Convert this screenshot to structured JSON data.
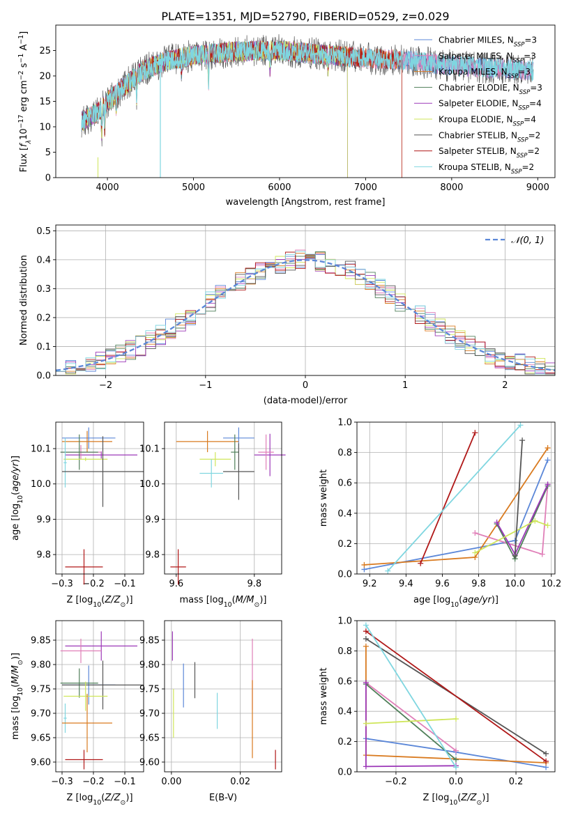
{
  "figure": {
    "title": "PLATE=1351, MJD=52790, FIBERID=0529, z=0.029"
  },
  "colors": {
    "Chabrier MILES": "#5b87d8",
    "Salpeter MILES": "#e07fb8",
    "Kroupa MILES": "#d97a1f",
    "Chabrier ELODIE": "#4f7f59",
    "Salpeter ELODIE": "#9c38b8",
    "Kroupa ELODIE": "#cfe65a",
    "Chabrier STELIB": "#555555",
    "Salpeter STELIB": "#b01818",
    "Kroupa STELIB": "#7fd6e0",
    "gaussian": "#5b87d8"
  },
  "chart_data": [
    {
      "id": "spectrum",
      "type": "line",
      "xlabel": "wavelength [Angstrom, rest frame]",
      "ylabel": "Flux [f_λ10^-17 erg cm^-2 s^-1 A^-1]",
      "xlim": [
        3400,
        9200
      ],
      "ylim": [
        0,
        30
      ],
      "xticks": [
        "4000",
        "5000",
        "6000",
        "7000",
        "8000",
        "9000"
      ],
      "yticks": [
        "0",
        "5",
        "10",
        "15",
        "20",
        "25"
      ],
      "legend_position": "upper right",
      "x_range": [
        3700,
        8950
      ],
      "continuum": [
        [
          3700,
          11
        ],
        [
          3900,
          13
        ],
        [
          4000,
          15
        ],
        [
          4200,
          18
        ],
        [
          4400,
          21
        ],
        [
          4700,
          23
        ],
        [
          5000,
          24
        ],
        [
          5500,
          24.8
        ],
        [
          6000,
          25
        ],
        [
          6500,
          24.2
        ],
        [
          7000,
          23.5
        ],
        [
          7500,
          23
        ],
        [
          8000,
          22
        ],
        [
          8500,
          21.5
        ],
        [
          8950,
          21
        ]
      ],
      "series": [
        {
          "name": "Chabrier MILES, N_SSP=3",
          "label_main": "Chabrier MILES, N",
          "label_sub": "SSP",
          "label_tail": "=3",
          "color_key": "Chabrier MILES",
          "end": 8950
        },
        {
          "name": "Salpeter MILES, N_SSP=3",
          "label_main": "Salpeter MILES, N",
          "label_sub": "SSP",
          "label_tail": "=3",
          "color_key": "Salpeter MILES",
          "end": 8950
        },
        {
          "name": "Kroupa MILES, N_SSP=3",
          "label_main": "Kroupa MILES, N",
          "label_sub": "SSP",
          "label_tail": "=3",
          "color_key": "Kroupa MILES",
          "end": 7420
        },
        {
          "name": "Chabrier ELODIE, N_SSP=3",
          "label_main": "Chabrier ELODIE, N",
          "label_sub": "SSP",
          "label_tail": "=3",
          "color_key": "Chabrier ELODIE",
          "end": 6790
        },
        {
          "name": "Salpeter ELODIE, N_SSP=4",
          "label_main": "Salpeter ELODIE, N",
          "label_sub": "SSP",
          "label_tail": "=4",
          "color_key": "Salpeter ELODIE",
          "end": 6790
        },
        {
          "name": "Kroupa ELODIE, N_SSP=4",
          "label_main": "Kroupa ELODIE, N",
          "label_sub": "SSP",
          "label_tail": "=4",
          "color_key": "Kroupa ELODIE",
          "end": 6790
        },
        {
          "name": "Chabrier STELIB, N_SSP=2",
          "label_main": "Chabrier STELIB, N",
          "label_sub": "SSP",
          "label_tail": "=2",
          "color_key": "Chabrier STELIB",
          "end": 8950
        },
        {
          "name": "Salpeter STELIB, N_SSP=2",
          "label_main": "Salpeter STELIB, N",
          "label_sub": "SSP",
          "label_tail": "=2",
          "color_key": "Salpeter STELIB",
          "end": 7420
        },
        {
          "name": "Kroupa STELIB, N_SSP=2",
          "label_main": "Kroupa STELIB, N",
          "label_sub": "SSP",
          "label_tail": "=2",
          "color_key": "Kroupa STELIB",
          "end": 8950
        }
      ]
    },
    {
      "id": "residuals",
      "type": "histogram",
      "xlabel": "(data-model)/error",
      "ylabel": "Normed distribution",
      "xlim": [
        -2.5,
        2.5
      ],
      "ylim": [
        0,
        0.52
      ],
      "xticks": [
        "-2",
        "-1",
        "0",
        "1",
        "2"
      ],
      "yticks": [
        "0.0",
        "0.1",
        "0.2",
        "0.3",
        "0.4",
        "0.5"
      ],
      "grid": true,
      "legend_position": "upper right",
      "legend_label": "𝒩(0, 1)",
      "bin_width": 0.1,
      "bin_start": -2.5,
      "gaussian": {
        "mean": 0,
        "sigma": 1
      },
      "series_color_keys": [
        "Chabrier MILES",
        "Salpeter MILES",
        "Kroupa MILES",
        "Chabrier ELODIE",
        "Salpeter ELODIE",
        "Kroupa ELODIE",
        "Chabrier STELIB",
        "Salpeter STELIB",
        "Kroupa STELIB"
      ]
    },
    {
      "id": "age_vs_z",
      "type": "errorbar",
      "xlabel": "Z [log10(Z/Z⊙)]",
      "ylabel": "age [log10(age/yr)]",
      "xlim": [
        -0.32,
        -0.04
      ],
      "ylim": [
        9.745,
        10.175
      ],
      "xticks": [
        "-0.3",
        "-0.2",
        "-0.1"
      ],
      "xtick_values": [
        -0.3,
        -0.2,
        -0.1
      ],
      "yticks": [
        "9.8",
        "9.9",
        "10.0",
        "10.1"
      ],
      "ytick_values": [
        9.8,
        9.9,
        10.0,
        10.1
      ],
      "points": [
        {
          "color_key": "Chabrier MILES",
          "x": -0.215,
          "xerr": 0.085,
          "y": 10.13,
          "yerr": 0.03
        },
        {
          "color_key": "Kroupa MILES",
          "x": -0.22,
          "xerr": 0.08,
          "y": 10.12,
          "yerr": 0.03
        },
        {
          "color_key": "Salpeter ELODIE",
          "x": -0.175,
          "xerr": 0.115,
          "y": 10.082,
          "yerr": 0.01
        },
        {
          "color_key": "Salpeter MILES",
          "x": -0.24,
          "xerr": 0.065,
          "y": 10.09,
          "yerr": 0.02
        },
        {
          "color_key": "Chabrier ELODIE",
          "x": -0.245,
          "xerr": 0.06,
          "y": 10.09,
          "yerr": 0.05
        },
        {
          "color_key": "Kroupa ELODIE",
          "x": -0.225,
          "xerr": 0.07,
          "y": 10.07,
          "yerr": 0.005
        },
        {
          "color_key": "Kroupa STELIB",
          "x": -0.29,
          "xerr": 0.005,
          "y": 10.06,
          "yerr": 0.07
        },
        {
          "color_key": "Chabrier STELIB",
          "x": -0.17,
          "xerr": 0.13,
          "y": 10.035,
          "yerr": 0.1
        },
        {
          "color_key": "Salpeter STELIB",
          "x": -0.23,
          "xerr": 0.06,
          "y": 9.765,
          "yerr": 0.05
        }
      ]
    },
    {
      "id": "age_vs_mass",
      "type": "errorbar",
      "xlabel": "mass [log10(M/M⊙)]",
      "ylabel": "",
      "xlim": [
        9.57,
        9.87
      ],
      "ylim": [
        9.745,
        10.175
      ],
      "xticks": [
        "9.6",
        "9.8"
      ],
      "xtick_values": [
        9.6,
        9.8
      ],
      "yticks": [
        "9.8",
        "9.9",
        "10.0",
        "10.1"
      ],
      "ytick_values": [
        9.8,
        9.9,
        10.0,
        10.1
      ],
      "points": [
        {
          "color_key": "Chabrier MILES",
          "x": 9.76,
          "xerr": 0.04,
          "y": 10.13,
          "yerr": 0.03
        },
        {
          "color_key": "Kroupa MILES",
          "x": 9.68,
          "xerr": 0.08,
          "y": 10.12,
          "yerr": 0.03
        },
        {
          "color_key": "Salpeter ELODIE",
          "x": 9.84,
          "xerr": 0.04,
          "y": 10.082,
          "yerr": 0.06
        },
        {
          "color_key": "Salpeter MILES",
          "x": 9.83,
          "xerr": 0.02,
          "y": 10.09,
          "yerr": 0.05
        },
        {
          "color_key": "Chabrier ELODIE",
          "x": 9.75,
          "xerr": 0.01,
          "y": 10.09,
          "yerr": 0.05
        },
        {
          "color_key": "Kroupa ELODIE",
          "x": 9.7,
          "xerr": 0.04,
          "y": 10.07,
          "yerr": 0.02
        },
        {
          "color_key": "Kroupa STELIB",
          "x": 9.69,
          "xerr": 0.03,
          "y": 10.03,
          "yerr": 0.04
        },
        {
          "color_key": "Chabrier STELIB",
          "x": 9.76,
          "xerr": 0.04,
          "y": 10.035,
          "yerr": 0.08
        },
        {
          "color_key": "Salpeter STELIB",
          "x": 9.605,
          "xerr": 0.02,
          "y": 9.765,
          "yerr": 0.05
        }
      ]
    },
    {
      "id": "weight_vs_age",
      "type": "line",
      "xlabel": "age [log10(age/yr)]",
      "ylabel": "mass weight",
      "xlim": [
        9.13,
        10.22
      ],
      "ylim": [
        0,
        1.0
      ],
      "xticks": [
        "9.2",
        "9.4",
        "9.6",
        "9.8",
        "10.0",
        "10.2"
      ],
      "xtick_values": [
        9.2,
        9.4,
        9.6,
        9.8,
        10.0,
        10.2
      ],
      "yticks": [
        "0.0",
        "0.2",
        "0.4",
        "0.6",
        "0.8",
        "1.0"
      ],
      "ytick_values": [
        0,
        0.2,
        0.4,
        0.6,
        0.8,
        1.0
      ],
      "grid": true,
      "series": [
        {
          "color_key": "Chabrier MILES",
          "x": [
            9.17,
            10.0,
            10.18
          ],
          "y": [
            0.03,
            0.22,
            0.75
          ]
        },
        {
          "color_key": "Kroupa MILES",
          "x": [
            9.17,
            9.78,
            10.18
          ],
          "y": [
            0.06,
            0.11,
            0.83
          ]
        },
        {
          "color_key": "Salpeter MILES",
          "x": [
            9.78,
            10.15,
            10.18
          ],
          "y": [
            0.27,
            0.13,
            0.59
          ]
        },
        {
          "color_key": "Chabrier ELODIE",
          "x": [
            9.9,
            10.0,
            10.18
          ],
          "y": [
            0.33,
            0.1,
            0.58
          ]
        },
        {
          "color_key": "Salpeter ELODIE",
          "x": [
            9.9,
            10.0,
            10.18
          ],
          "y": [
            0.34,
            0.13,
            0.59
          ]
        },
        {
          "color_key": "Kroupa ELODIE",
          "x": [
            9.78,
            10.11,
            10.18
          ],
          "y": [
            0.14,
            0.35,
            0.32
          ]
        },
        {
          "color_key": "Chabrier STELIB",
          "x": [
            10.0,
            10.04
          ],
          "y": [
            0.12,
            0.88
          ]
        },
        {
          "color_key": "Salpeter STELIB",
          "x": [
            9.48,
            9.78
          ],
          "y": [
            0.07,
            0.93
          ]
        },
        {
          "color_key": "Kroupa STELIB",
          "x": [
            9.3,
            10.03
          ],
          "y": [
            0.02,
            0.98
          ]
        }
      ]
    },
    {
      "id": "mass_vs_z",
      "type": "errorbar",
      "xlabel": "Z [log10(Z/Z⊙)]",
      "ylabel": "mass [log10(M/M⊙)]",
      "xlim": [
        -0.32,
        -0.04
      ],
      "ylim": [
        9.58,
        9.89
      ],
      "xticks": [
        "-0.3",
        "-0.2",
        "-0.1"
      ],
      "xtick_values": [
        -0.3,
        -0.2,
        -0.1
      ],
      "yticks": [
        "9.60",
        "9.65",
        "9.70",
        "9.75",
        "9.80",
        "9.85"
      ],
      "ytick_values": [
        9.6,
        9.65,
        9.7,
        9.75,
        9.8,
        9.85
      ],
      "points": [
        {
          "color_key": "Salpeter ELODIE",
          "x": -0.175,
          "xerr": 0.115,
          "y": 9.838,
          "yerr": 0.03
        },
        {
          "color_key": "Salpeter MILES",
          "x": -0.24,
          "xerr": 0.065,
          "y": 9.828,
          "yerr": 0.025
        },
        {
          "color_key": "Chabrier MILES",
          "x": -0.215,
          "xerr": 0.085,
          "y": 9.758,
          "yerr": 0.04
        },
        {
          "color_key": "Chabrier ELODIE",
          "x": -0.245,
          "xerr": 0.06,
          "y": 9.762,
          "yerr": 0.03
        },
        {
          "color_key": "Chabrier STELIB",
          "x": -0.17,
          "xerr": 0.13,
          "y": 9.758,
          "yerr": 0.05
        },
        {
          "color_key": "Kroupa ELODIE",
          "x": -0.225,
          "xerr": 0.07,
          "y": 9.735,
          "yerr": 0.03
        },
        {
          "color_key": "Kroupa STELIB",
          "x": -0.29,
          "xerr": 0.005,
          "y": 9.69,
          "yerr": 0.03
        },
        {
          "color_key": "Kroupa MILES",
          "x": -0.22,
          "xerr": 0.08,
          "y": 9.68,
          "yerr": 0.06
        },
        {
          "color_key": "Salpeter STELIB",
          "x": -0.23,
          "xerr": 0.06,
          "y": 9.605,
          "yerr": 0.02
        }
      ]
    },
    {
      "id": "mass_vs_ebv",
      "type": "errorbar",
      "xlabel": "E(B-V)",
      "ylabel": "",
      "xlim": [
        -0.002,
        0.032
      ],
      "ylim": [
        9.58,
        9.89
      ],
      "xticks": [
        "0.00",
        "0.02"
      ],
      "xtick_values": [
        0.0,
        0.02
      ],
      "yticks": [
        "9.60",
        "9.65",
        "9.70",
        "9.75",
        "9.80",
        "9.85"
      ],
      "ytick_values": [
        9.6,
        9.65,
        9.7,
        9.75,
        9.8,
        9.85
      ],
      "points": [
        {
          "color_key": "Salpeter ELODIE",
          "x": 0.0003,
          "xerr": 0.0,
          "y": 9.838,
          "yerr": 0.03
        },
        {
          "color_key": "Kroupa ELODIE",
          "x": 0.0006,
          "xerr": 0.0,
          "y": 9.7,
          "yerr": 0.05
        },
        {
          "color_key": "Chabrier MILES",
          "x": 0.0035,
          "xerr": 0.0,
          "y": 9.757,
          "yerr": 0.045
        },
        {
          "color_key": "Chabrier STELIB",
          "x": 0.0068,
          "xerr": 0.0,
          "y": 9.768,
          "yerr": 0.037
        },
        {
          "color_key": "Kroupa STELIB",
          "x": 0.0133,
          "xerr": 0.0,
          "y": 9.705,
          "yerr": 0.037
        },
        {
          "color_key": "Salpeter MILES",
          "x": 0.0235,
          "xerr": 0.0,
          "y": 9.78,
          "yerr": 0.073
        },
        {
          "color_key": "Kroupa MILES",
          "x": 0.0235,
          "xerr": 0.0,
          "y": 9.688,
          "yerr": 0.08
        },
        {
          "color_key": "Salpeter STELIB",
          "x": 0.0302,
          "xerr": 0.0,
          "y": 9.605,
          "yerr": 0.02
        }
      ]
    },
    {
      "id": "weight_vs_z",
      "type": "line",
      "xlabel": "Z [log10(Z/Z⊙)]",
      "ylabel": "mass weight",
      "xlim": [
        -0.33,
        0.33
      ],
      "ylim": [
        0,
        1.0
      ],
      "xticks": [
        "-0.2",
        "0.0",
        "0.2"
      ],
      "xtick_values": [
        -0.2,
        0.0,
        0.2
      ],
      "yticks": [
        "0.0",
        "0.2",
        "0.4",
        "0.6",
        "0.8",
        "1.0"
      ],
      "ytick_values": [
        0,
        0.2,
        0.4,
        0.6,
        0.8,
        1.0
      ],
      "grid": true,
      "series": [
        {
          "color_key": "Chabrier MILES",
          "x": [
            -0.3,
            0.0,
            0.3
          ],
          "y": [
            0.22,
            0.13,
            0.03
          ]
        },
        {
          "color_key": "Kroupa MILES",
          "x": [
            -0.3,
            -0.3,
            0.3
          ],
          "y": [
            0.83,
            0.11,
            0.06
          ]
        },
        {
          "color_key": "Salpeter MILES",
          "x": [
            -0.3,
            0.0
          ],
          "y": [
            0.59,
            0.14
          ]
        },
        {
          "color_key": "Chabrier ELODIE",
          "x": [
            -0.3,
            0.0
          ],
          "y": [
            0.58,
            0.08
          ]
        },
        {
          "color_key": "Salpeter ELODIE",
          "x": [
            -0.3,
            -0.3,
            0.0
          ],
          "y": [
            0.59,
            0.035,
            0.04
          ]
        },
        {
          "color_key": "Kroupa ELODIE",
          "x": [
            -0.3,
            0.0
          ],
          "y": [
            0.32,
            0.35
          ]
        },
        {
          "color_key": "Chabrier STELIB",
          "x": [
            -0.3,
            0.3
          ],
          "y": [
            0.88,
            0.12
          ]
        },
        {
          "color_key": "Salpeter STELIB",
          "x": [
            -0.3,
            0.3
          ],
          "y": [
            0.93,
            0.07
          ]
        },
        {
          "color_key": "Kroupa STELIB",
          "x": [
            -0.3,
            0.0
          ],
          "y": [
            0.97,
            0.03
          ]
        }
      ]
    }
  ]
}
